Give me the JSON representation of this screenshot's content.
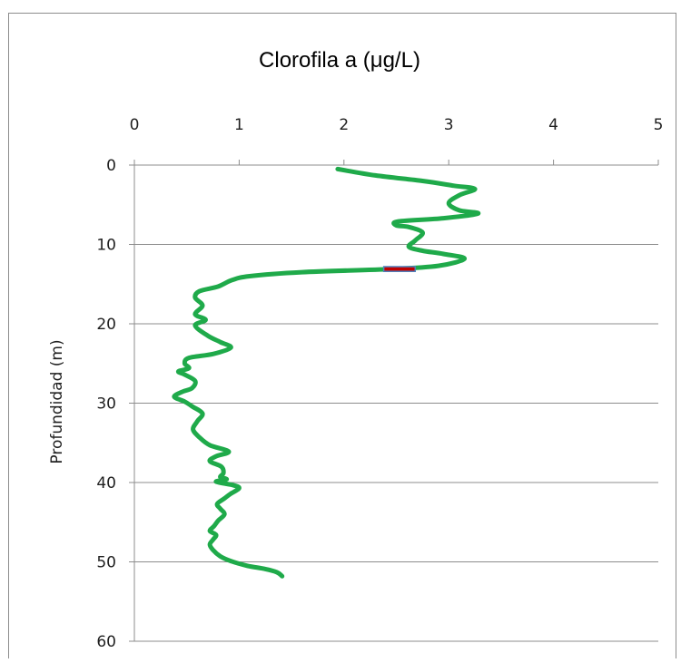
{
  "chart_data": {
    "type": "line",
    "title": "Clorofila a (μg/L)",
    "xlabel": "",
    "ylabel": "Profundidad (m)",
    "xlim": [
      0,
      5
    ],
    "ylim": [
      0,
      60
    ],
    "y_inverted": true,
    "x_axis_position": "top",
    "xticks": [
      0,
      1,
      2,
      3,
      4,
      5
    ],
    "yticks": [
      0,
      10,
      20,
      30,
      40,
      50,
      60
    ],
    "grid": "horizontal",
    "legend": "none",
    "series": [
      {
        "color": "#1faa4a",
        "points": [
          [
            1.94,
            0.5
          ],
          [
            2.3,
            1.3
          ],
          [
            2.75,
            2.0
          ],
          [
            3.05,
            2.6
          ],
          [
            3.25,
            3.0
          ],
          [
            3.1,
            3.8
          ],
          [
            3.0,
            4.8
          ],
          [
            3.1,
            5.7
          ],
          [
            3.28,
            6.1
          ],
          [
            2.95,
            6.7
          ],
          [
            2.52,
            7.1
          ],
          [
            2.5,
            7.6
          ],
          [
            2.62,
            7.8
          ],
          [
            2.75,
            8.5
          ],
          [
            2.68,
            9.5
          ],
          [
            2.62,
            10.3
          ],
          [
            2.75,
            10.8
          ],
          [
            2.95,
            11.2
          ],
          [
            3.15,
            11.8
          ],
          [
            2.9,
            12.7
          ],
          [
            2.45,
            13.1
          ],
          [
            1.6,
            13.5
          ],
          [
            1.1,
            14.0
          ],
          [
            0.93,
            14.5
          ],
          [
            0.8,
            15.3
          ],
          [
            0.62,
            15.9
          ],
          [
            0.58,
            16.7
          ],
          [
            0.65,
            17.7
          ],
          [
            0.58,
            18.8
          ],
          [
            0.68,
            19.5
          ],
          [
            0.58,
            20.2
          ],
          [
            0.7,
            21.5
          ],
          [
            0.82,
            22.3
          ],
          [
            0.92,
            23.0
          ],
          [
            0.75,
            23.8
          ],
          [
            0.52,
            24.3
          ],
          [
            0.48,
            25.0
          ],
          [
            0.52,
            25.6
          ],
          [
            0.42,
            26.0
          ],
          [
            0.48,
            26.4
          ],
          [
            0.58,
            27.2
          ],
          [
            0.55,
            28.1
          ],
          [
            0.45,
            28.6
          ],
          [
            0.38,
            29.2
          ],
          [
            0.48,
            29.8
          ],
          [
            0.55,
            30.4
          ],
          [
            0.65,
            31.3
          ],
          [
            0.6,
            32.3
          ],
          [
            0.56,
            33.3
          ],
          [
            0.62,
            34.3
          ],
          [
            0.72,
            35.3
          ],
          [
            0.9,
            36.1
          ],
          [
            0.78,
            36.7
          ],
          [
            0.72,
            37.3
          ],
          [
            0.83,
            38.0
          ],
          [
            0.85,
            38.8
          ],
          [
            0.82,
            39.3
          ],
          [
            0.88,
            39.6
          ],
          [
            0.78,
            39.9
          ],
          [
            0.93,
            40.3
          ],
          [
            1.0,
            40.7
          ],
          [
            0.92,
            41.4
          ],
          [
            0.86,
            42.0
          ],
          [
            0.79,
            42.7
          ],
          [
            0.82,
            43.3
          ],
          [
            0.86,
            44.0
          ],
          [
            0.8,
            44.8
          ],
          [
            0.76,
            45.5
          ],
          [
            0.72,
            46.1
          ],
          [
            0.78,
            46.6
          ],
          [
            0.75,
            47.2
          ],
          [
            0.72,
            47.8
          ],
          [
            0.75,
            48.5
          ],
          [
            0.82,
            49.3
          ],
          [
            0.92,
            49.9
          ],
          [
            1.08,
            50.5
          ],
          [
            1.25,
            50.9
          ],
          [
            1.36,
            51.3
          ],
          [
            1.41,
            51.8
          ]
        ]
      }
    ],
    "annotations": [
      {
        "shape": "bar-marker",
        "x_range": [
          2.38,
          2.68
        ],
        "y_range": [
          12.8,
          13.4
        ],
        "fill": "#c00000",
        "edge": "#4f81bd"
      }
    ]
  }
}
